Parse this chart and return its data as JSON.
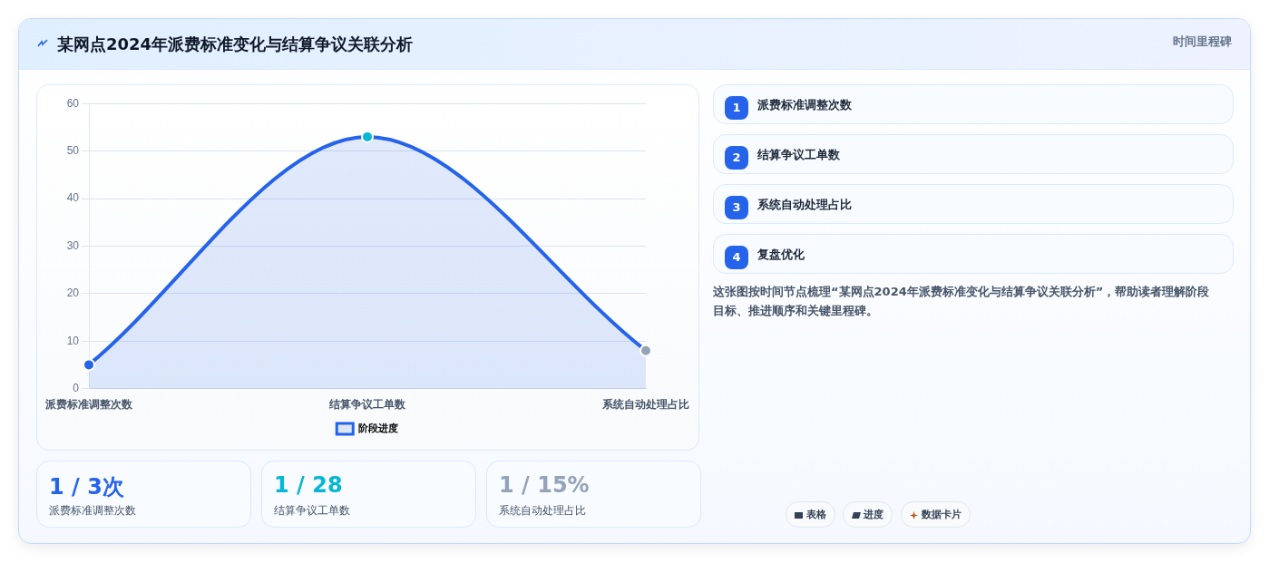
{
  "chart_data": {
    "type": "area",
    "title": "某网点2024年派费标准变化与结算争议关联分析",
    "categories": [
      "派费标准调整次数",
      "结算争议工单数",
      "系统自动处理占比"
    ],
    "series": [
      {
        "name": "阶段进度",
        "color": "#2563eb",
        "colors": [
          "#2563eb",
          "#06b6d4",
          "#94a3b8"
        ],
        "values": [
          5,
          53,
          8
        ]
      }
    ],
    "ylim": [
      0,
      60
    ],
    "yticks": [
      0,
      10,
      20,
      30,
      40,
      50,
      60
    ],
    "grid": "y",
    "legend": "bottom",
    "marker": "circle",
    "line_style": "solid",
    "annotations": [
      "时间里程碑",
      "1",
      "派费标准调整次数",
      "2",
      "结算争议工单数",
      "3",
      "系统自动处理占比",
      "4",
      "复盘优化",
      "这张图按时间节点梳理“某网点2024年派费标准变化与结算争议关联分析”，帮助读者理解阶段目标、推进顺序和关键里程碑。",
      "1 / 3次",
      "派费标准调整次数",
      "1 / 28",
      "结算争议工单数",
      "1 / 15%",
      "系统自动处理占比",
      "表格",
      "进度",
      "数据卡片"
    ]
  }
}
